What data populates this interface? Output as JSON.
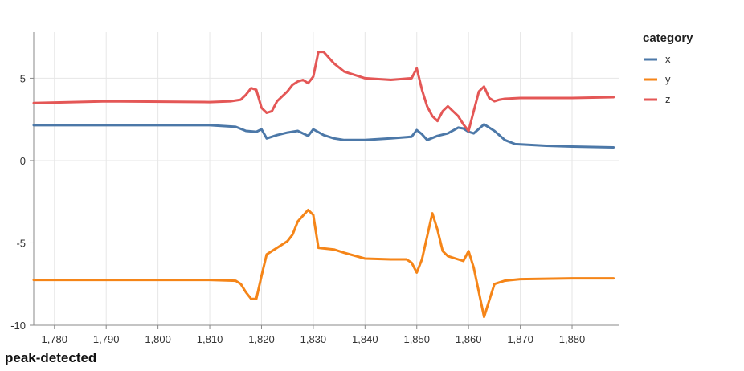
{
  "caption": "peak-detected",
  "chart_data": {
    "type": "line",
    "title": "",
    "xlabel": "",
    "ylabel": "",
    "xlim": [
      1776,
      1889
    ],
    "ylim": [
      -10,
      7.8
    ],
    "x_ticks": [
      1780,
      1790,
      1800,
      1810,
      1820,
      1830,
      1840,
      1850,
      1860,
      1870,
      1880
    ],
    "x_tick_labels": [
      "1,780",
      "1,790",
      "1,800",
      "1,810",
      "1,820",
      "1,830",
      "1,840",
      "1,850",
      "1,860",
      "1,870",
      "1,880"
    ],
    "y_ticks": [
      -10,
      -5,
      0,
      5
    ],
    "y_tick_labels": [
      "-10",
      "-5",
      "0",
      "5"
    ],
    "grid": true,
    "legend": {
      "title": "category",
      "position": "right"
    },
    "series": [
      {
        "name": "x",
        "color": "#4c78a8",
        "points": [
          [
            1776,
            2.15
          ],
          [
            1790,
            2.15
          ],
          [
            1810,
            2.15
          ],
          [
            1815,
            2.05
          ],
          [
            1817,
            1.8
          ],
          [
            1819,
            1.75
          ],
          [
            1820,
            1.9
          ],
          [
            1821,
            1.35
          ],
          [
            1823,
            1.55
          ],
          [
            1825,
            1.7
          ],
          [
            1827,
            1.8
          ],
          [
            1829,
            1.5
          ],
          [
            1830,
            1.9
          ],
          [
            1832,
            1.55
          ],
          [
            1834,
            1.35
          ],
          [
            1836,
            1.25
          ],
          [
            1840,
            1.25
          ],
          [
            1845,
            1.35
          ],
          [
            1849,
            1.45
          ],
          [
            1850,
            1.85
          ],
          [
            1851,
            1.6
          ],
          [
            1852,
            1.25
          ],
          [
            1854,
            1.5
          ],
          [
            1856,
            1.65
          ],
          [
            1858,
            2.0
          ],
          [
            1859,
            1.95
          ],
          [
            1860,
            1.75
          ],
          [
            1861,
            1.65
          ],
          [
            1863,
            2.2
          ],
          [
            1865,
            1.8
          ],
          [
            1867,
            1.25
          ],
          [
            1869,
            1.0
          ],
          [
            1875,
            0.9
          ],
          [
            1880,
            0.85
          ],
          [
            1888,
            0.8
          ]
        ]
      },
      {
        "name": "y",
        "color": "#f58518",
        "points": [
          [
            1776,
            -7.25
          ],
          [
            1790,
            -7.25
          ],
          [
            1810,
            -7.25
          ],
          [
            1815,
            -7.3
          ],
          [
            1816,
            -7.5
          ],
          [
            1817,
            -8.0
          ],
          [
            1818,
            -8.4
          ],
          [
            1819,
            -8.4
          ],
          [
            1820,
            -7.0
          ],
          [
            1821,
            -5.7
          ],
          [
            1823,
            -5.3
          ],
          [
            1825,
            -4.9
          ],
          [
            1826,
            -4.5
          ],
          [
            1827,
            -3.7
          ],
          [
            1829,
            -3.0
          ],
          [
            1830,
            -3.3
          ],
          [
            1831,
            -5.3
          ],
          [
            1834,
            -5.4
          ],
          [
            1836,
            -5.6
          ],
          [
            1840,
            -5.95
          ],
          [
            1845,
            -6.0
          ],
          [
            1848,
            -6.0
          ],
          [
            1849,
            -6.2
          ],
          [
            1850,
            -6.8
          ],
          [
            1851,
            -6.0
          ],
          [
            1853,
            -3.2
          ],
          [
            1854,
            -4.2
          ],
          [
            1855,
            -5.5
          ],
          [
            1856,
            -5.8
          ],
          [
            1858,
            -6.0
          ],
          [
            1859,
            -6.1
          ],
          [
            1860,
            -5.5
          ],
          [
            1861,
            -6.5
          ],
          [
            1863,
            -9.5
          ],
          [
            1864,
            -8.5
          ],
          [
            1865,
            -7.5
          ],
          [
            1867,
            -7.3
          ],
          [
            1870,
            -7.2
          ],
          [
            1880,
            -7.15
          ],
          [
            1888,
            -7.15
          ]
        ]
      },
      {
        "name": "z",
        "color": "#e45756",
        "points": [
          [
            1776,
            3.5
          ],
          [
            1790,
            3.6
          ],
          [
            1810,
            3.55
          ],
          [
            1814,
            3.6
          ],
          [
            1816,
            3.7
          ],
          [
            1817,
            4.0
          ],
          [
            1818,
            4.4
          ],
          [
            1819,
            4.3
          ],
          [
            1820,
            3.2
          ],
          [
            1821,
            2.9
          ],
          [
            1822,
            3.0
          ],
          [
            1823,
            3.6
          ],
          [
            1825,
            4.2
          ],
          [
            1826,
            4.6
          ],
          [
            1827,
            4.8
          ],
          [
            1828,
            4.9
          ],
          [
            1829,
            4.7
          ],
          [
            1830,
            5.1
          ],
          [
            1831,
            6.6
          ],
          [
            1832,
            6.6
          ],
          [
            1834,
            5.9
          ],
          [
            1836,
            5.4
          ],
          [
            1840,
            5.0
          ],
          [
            1845,
            4.9
          ],
          [
            1849,
            5.0
          ],
          [
            1850,
            5.6
          ],
          [
            1851,
            4.3
          ],
          [
            1852,
            3.3
          ],
          [
            1853,
            2.7
          ],
          [
            1854,
            2.4
          ],
          [
            1855,
            3.0
          ],
          [
            1856,
            3.3
          ],
          [
            1857,
            3.0
          ],
          [
            1858,
            2.7
          ],
          [
            1859,
            2.2
          ],
          [
            1860,
            1.8
          ],
          [
            1861,
            3.0
          ],
          [
            1862,
            4.2
          ],
          [
            1863,
            4.5
          ],
          [
            1864,
            3.8
          ],
          [
            1865,
            3.6
          ],
          [
            1866,
            3.7
          ],
          [
            1867,
            3.75
          ],
          [
            1870,
            3.8
          ],
          [
            1880,
            3.8
          ],
          [
            1888,
            3.85
          ]
        ]
      }
    ]
  }
}
